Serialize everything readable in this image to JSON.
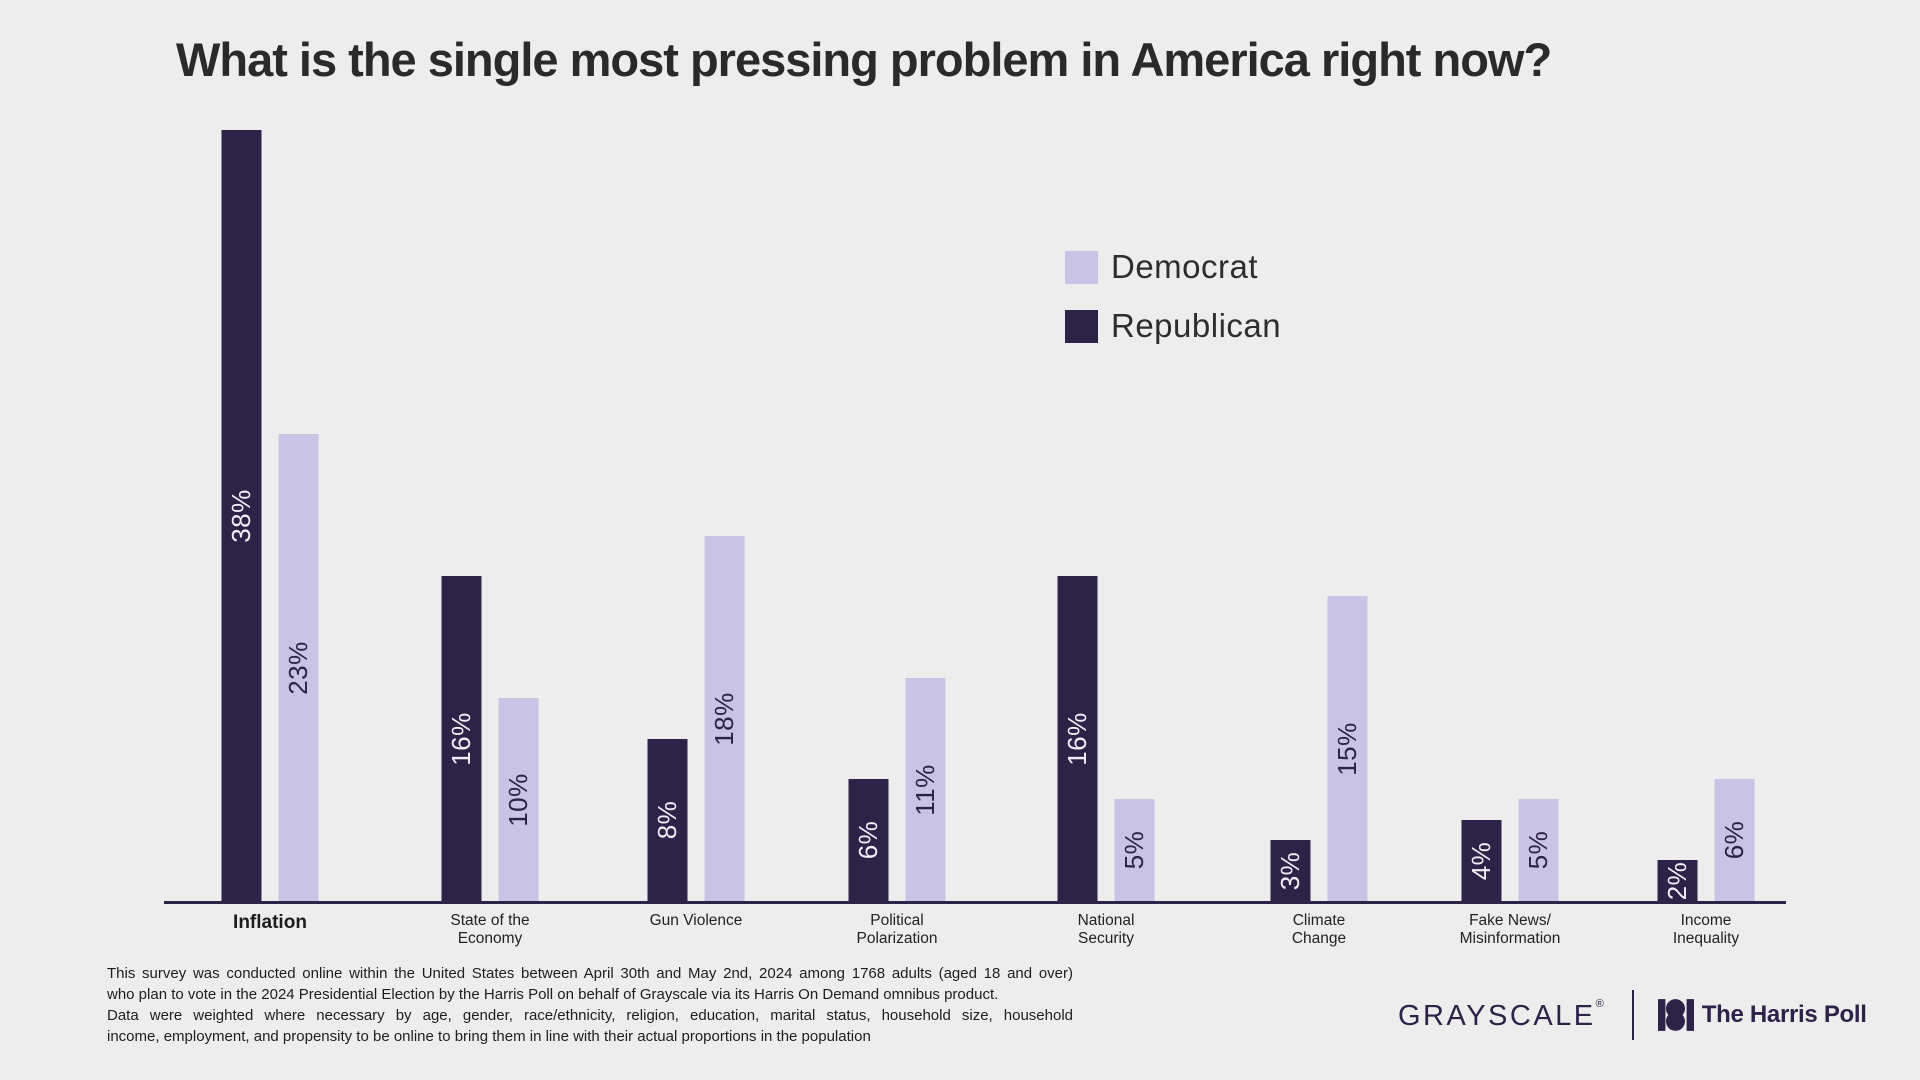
{
  "title": "What is the single most pressing problem in America right now?",
  "legend": {
    "items": [
      {
        "label": "Democrat",
        "color": "#c9c3e6"
      },
      {
        "label": "Republican",
        "color": "#2d2348"
      }
    ]
  },
  "chart_data": {
    "type": "bar",
    "orientation": "vertical-grouped",
    "title": "What is the single most pressing problem in America right now?",
    "categories": [
      "Inflation",
      "State of the Economy",
      "Gun Violence",
      "Political Polarization",
      "National Security",
      "Climate Change",
      "Fake News/Misinformation",
      "Income Inequality"
    ],
    "category_label_lines": [
      [
        "Inflation"
      ],
      [
        "State of the",
        "Economy"
      ],
      [
        "Gun Violence"
      ],
      [
        "Political",
        "Polarization"
      ],
      [
        "National",
        "Security"
      ],
      [
        "Climate",
        "Change"
      ],
      [
        "Fake News/",
        "Misinformation"
      ],
      [
        "Income",
        "Inequality"
      ]
    ],
    "series": [
      {
        "name": "Republican",
        "color": "#2d2348",
        "label_color": "#f0eef6",
        "values": [
          38,
          16,
          8,
          6,
          16,
          3,
          4,
          2
        ]
      },
      {
        "name": "Democrat",
        "color": "#c9c3e6",
        "label_color": "#2d2348",
        "values": [
          23,
          10,
          18,
          11,
          5,
          15,
          5,
          6
        ]
      }
    ],
    "value_suffix": "%",
    "ylim": [
      0,
      40
    ],
    "grid": false,
    "y_axis_visible": false,
    "legend_position": "upper-right",
    "bar_order_left_to_right": [
      "Republican",
      "Democrat"
    ]
  },
  "footer": {
    "lines": [
      "This survey was conducted online within the United States between April 30th and May 2nd, 2024 among 1768 adults (aged 18 and over)",
      "who plan to vote in the 2024 Presidential Election by the Harris Poll on behalf of Grayscale via its Harris On Demand omnibus product.",
      "Data were weighted where necessary by age, gender, race/ethnicity, religion, education, marital status, household size, household",
      "income, employment, and propensity to be online to bring them in line with their actual proportions in the population"
    ]
  },
  "branding": {
    "grayscale_wordmark": "GRAYSCALE",
    "registered_mark": "®",
    "harris_poll": "The Harris Poll"
  }
}
